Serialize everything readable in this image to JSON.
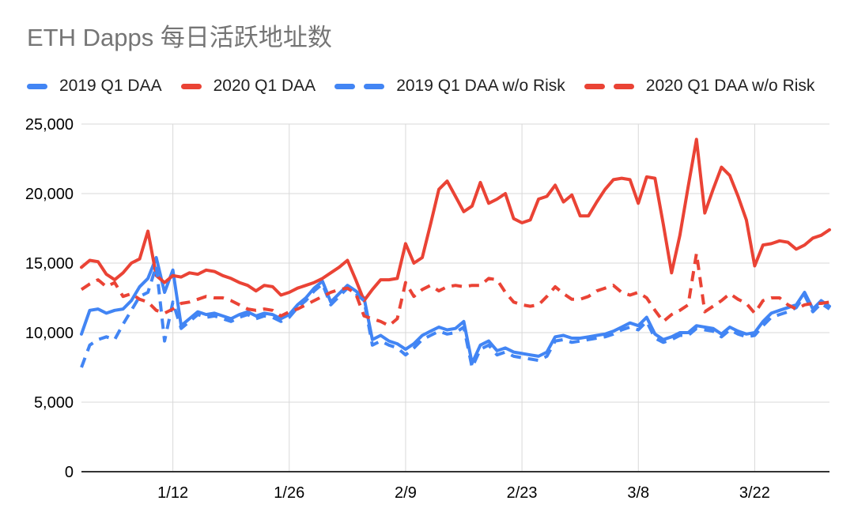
{
  "colors": {
    "background": "#ffffff",
    "title_text": "#757575",
    "legend_text": "#212121",
    "axis_label": "#000000",
    "gridline": "#d9d9d9",
    "axis_line": "#333333",
    "blue": "#4285f4",
    "red": "#ea4335"
  },
  "chart_data": {
    "type": "line",
    "title": "ETH Dapps 每日活跃地址数",
    "xlabel": "",
    "ylabel": "",
    "ylim": [
      0,
      25000
    ],
    "grid": true,
    "legend_position": "top",
    "x_domain_days": 91,
    "x_ticks": [
      {
        "label": "1/12",
        "day_index": 11
      },
      {
        "label": "1/26",
        "day_index": 25
      },
      {
        "label": "2/9",
        "day_index": 39
      },
      {
        "label": "2/23",
        "day_index": 53
      },
      {
        "label": "3/8",
        "day_index": 67
      },
      {
        "label": "3/22",
        "day_index": 81
      }
    ],
    "y_ticks": [
      {
        "label": "0",
        "value": 0
      },
      {
        "label": "5,000",
        "value": 5000
      },
      {
        "label": "10,000",
        "value": 10000
      },
      {
        "label": "15,000",
        "value": 15000
      },
      {
        "label": "20,000",
        "value": 20000
      },
      {
        "label": "25,000",
        "value": 25000
      }
    ],
    "series": [
      {
        "name": "2019 Q1 DAA",
        "color": "#4285f4",
        "style": "solid",
        "values": [
          9900,
          11600,
          11700,
          11400,
          11600,
          11700,
          12300,
          13300,
          13900,
          15400,
          12900,
          14500,
          10500,
          11000,
          11500,
          11300,
          11400,
          11200,
          11000,
          11300,
          11500,
          11200,
          11400,
          11300,
          11000,
          11300,
          12000,
          12500,
          13200,
          13700,
          12200,
          12800,
          13400,
          13000,
          12500,
          9500,
          9800,
          9400,
          9200,
          8800,
          9200,
          9800,
          10100,
          10400,
          10200,
          10300,
          10800,
          7800,
          9100,
          9400,
          8700,
          8900,
          8600,
          8500,
          8400,
          8300,
          8600,
          9700,
          9800,
          9600,
          9600,
          9700,
          9800,
          9900,
          10100,
          10400,
          10700,
          10500,
          11100,
          9900,
          9500,
          9700,
          10000,
          10000,
          10500,
          10400,
          10300,
          9900,
          10400,
          10100,
          9900,
          10000,
          10800,
          11400,
          11600,
          11800,
          12000,
          12900,
          11700,
          12300,
          11900
        ]
      },
      {
        "name": "2020 Q1 DAA",
        "color": "#ea4335",
        "style": "solid",
        "values": [
          14700,
          15200,
          15100,
          14200,
          13800,
          14300,
          15000,
          15300,
          17300,
          14100,
          13600,
          14100,
          14000,
          14300,
          14200,
          14500,
          14400,
          14100,
          13900,
          13600,
          13400,
          13000,
          13400,
          13300,
          12700,
          12900,
          13200,
          13400,
          13600,
          13900,
          14300,
          14700,
          15200,
          13800,
          12300,
          13100,
          13800,
          13800,
          13900,
          16400,
          15000,
          15400,
          17800,
          20300,
          20900,
          19800,
          18700,
          19100,
          20800,
          19300,
          19600,
          20000,
          18200,
          17900,
          18100,
          19600,
          19800,
          20600,
          19400,
          19900,
          18400,
          18400,
          19400,
          20300,
          21000,
          21100,
          21000,
          19300,
          21200,
          21100,
          17800,
          14300,
          17000,
          20500,
          23900,
          18600,
          20300,
          21900,
          21300,
          19800,
          18100,
          14800,
          16300,
          16400,
          16600,
          16500,
          16000,
          16300,
          16800,
          17000,
          17400
        ]
      },
      {
        "name": "2019 Q1 DAA w/o Risk",
        "color": "#4285f4",
        "style": "dashed",
        "values": [
          7500,
          9100,
          9500,
          9700,
          9500,
          10600,
          11600,
          12600,
          12900,
          14800,
          9400,
          12200,
          10300,
          10800,
          11300,
          11100,
          11200,
          11000,
          10800,
          11100,
          11300,
          11000,
          11200,
          11100,
          10800,
          11100,
          11800,
          12300,
          13000,
          13500,
          12000,
          12600,
          13200,
          12800,
          12300,
          9100,
          9400,
          9100,
          8900,
          8400,
          8900,
          9500,
          9800,
          10100,
          9900,
          10000,
          10400,
          7500,
          8800,
          9100,
          8400,
          8600,
          8300,
          8200,
          8100,
          8000,
          8300,
          9400,
          9500,
          9300,
          9400,
          9500,
          9600,
          9700,
          9900,
          10200,
          10400,
          10200,
          10800,
          9600,
          9300,
          9500,
          9800,
          9800,
          10300,
          10200,
          10100,
          9700,
          10200,
          9900,
          9700,
          9800,
          10500,
          11100,
          11300,
          11500,
          11800,
          12700,
          11500,
          12100,
          11700
        ]
      },
      {
        "name": "2020 Q1 DAA w/o Risk",
        "color": "#ea4335",
        "style": "dashed",
        "values": [
          13100,
          13500,
          13800,
          13300,
          13600,
          12600,
          12800,
          12400,
          12200,
          11600,
          11400,
          11700,
          12100,
          12200,
          12400,
          12600,
          12500,
          12500,
          12300,
          12000,
          11700,
          11600,
          11700,
          11600,
          11200,
          11500,
          11700,
          12000,
          12300,
          12600,
          12900,
          13100,
          13200,
          12800,
          11200,
          11000,
          10800,
          10500,
          11000,
          13600,
          12600,
          13100,
          13400,
          13000,
          13300,
          13400,
          13300,
          13400,
          13400,
          13900,
          13800,
          12900,
          12200,
          12000,
          11900,
          12000,
          12600,
          13300,
          12800,
          12400,
          12400,
          12600,
          13000,
          13200,
          13400,
          12900,
          12700,
          12900,
          12500,
          11600,
          10800,
          11300,
          11600,
          12000,
          15700,
          11500,
          11900,
          12300,
          12800,
          12400,
          12100,
          11400,
          12300,
          12500,
          12500,
          12000,
          11700,
          12000,
          12100,
          12100,
          12200
        ]
      }
    ]
  }
}
